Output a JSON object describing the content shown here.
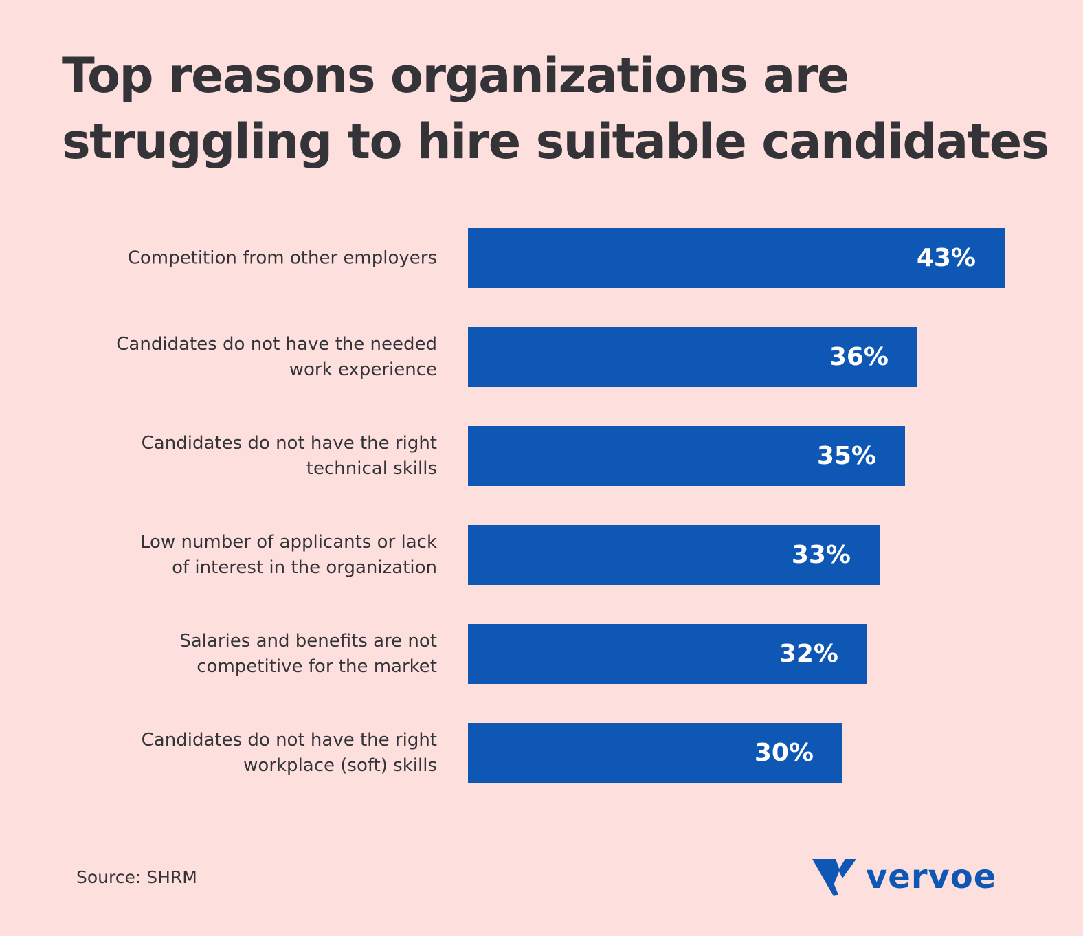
{
  "colors": {
    "background": "#fde0de",
    "bar": "#0f57b5",
    "text": "#333338",
    "value_text": "#ffffff",
    "brand": "#0f57b5"
  },
  "chart_data": {
    "type": "bar",
    "orientation": "horizontal",
    "title_lines": [
      "Top reasons organizations are",
      "struggling to hire suitable candidates"
    ],
    "categories": [
      [
        "Competition from other employers"
      ],
      [
        "Candidates do not have the needed",
        "work experience"
      ],
      [
        "Candidates do not have the right",
        "technical skills"
      ],
      [
        "Low number of applicants or lack",
        "of interest in the organization"
      ],
      [
        "Salaries and benefits are not",
        "competitive for the market"
      ],
      [
        "Candidates do not have the right",
        "workplace (soft) skills"
      ]
    ],
    "values": [
      43,
      36,
      35,
      33,
      32,
      30
    ],
    "value_labels": [
      "43%",
      "36%",
      "35%",
      "33%",
      "32%",
      "30%"
    ],
    "unit": "%",
    "xlim": [
      0,
      43
    ],
    "grid": false,
    "legend": "none"
  },
  "footer": {
    "source": "Source: SHRM"
  },
  "logo": {
    "icon": "vervoe-v-logo-icon",
    "text": "vervoe"
  }
}
